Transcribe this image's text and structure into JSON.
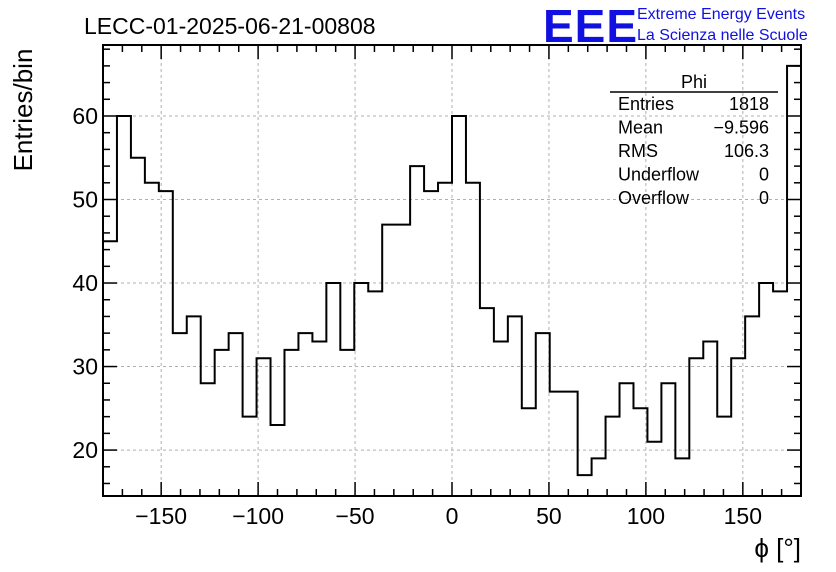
{
  "chart_data": {
    "type": "histogram",
    "title": "LECC-01-2025-06-21-00808",
    "xlabel": "ϕ [°]",
    "ylabel": "Entries/bin",
    "xlim": [
      -180,
      180
    ],
    "ylim": [
      14.5,
      68.5
    ],
    "bin_width": 7.2,
    "bin_start": -180,
    "values": [
      45,
      60,
      55,
      52,
      51,
      34,
      36,
      28,
      32,
      34,
      24,
      31,
      23,
      32,
      34,
      33,
      40,
      32,
      40,
      39,
      47,
      47,
      54,
      51,
      52,
      60,
      52,
      37,
      33,
      36,
      25,
      34,
      27,
      27,
      17,
      19,
      24,
      28,
      25,
      21,
      28,
      19,
      31,
      33,
      24,
      31,
      36,
      40,
      39,
      66
    ],
    "x_ticks": [
      -150,
      -100,
      -50,
      0,
      50,
      100,
      150
    ],
    "x_tick_labels": [
      "−150",
      "−100",
      "−50",
      "0",
      "50",
      "100",
      "150"
    ],
    "y_ticks": [
      20,
      30,
      40,
      50,
      60
    ],
    "y_tick_labels": [
      "20",
      "30",
      "40",
      "50",
      "60"
    ],
    "grid": true,
    "stats_box": {
      "name": "Phi",
      "rows": [
        {
          "label": "Entries",
          "value": "1818"
        },
        {
          "label": "Mean",
          "value": "−9.596"
        },
        {
          "label": "RMS",
          "value": "106.3"
        },
        {
          "label": "Underflow",
          "value": "0"
        },
        {
          "label": "Overflow",
          "value": "0"
        }
      ],
      "placement": "top-right"
    }
  },
  "logo": {
    "mark": "EEE",
    "line1": "Extreme Energy Events",
    "line2": "La Scienza nelle Scuole",
    "color": "#1010e0"
  }
}
